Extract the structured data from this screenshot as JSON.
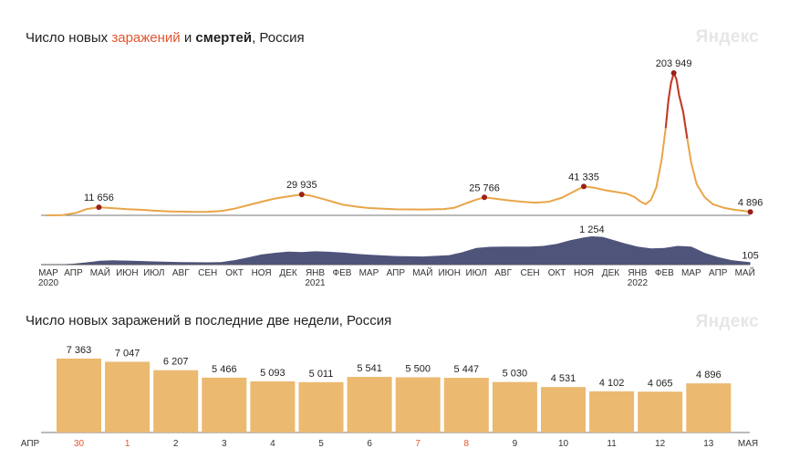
{
  "brand": "Яндекс",
  "chart_data": [
    {
      "type": "line",
      "title_parts": [
        {
          "text": "Число новых ",
          "style": "normal"
        },
        {
          "text": "заражений",
          "style": "red"
        },
        {
          "text": " и ",
          "style": "normal"
        },
        {
          "text": "смертей",
          "style": "bold"
        },
        {
          "text": ", Россия",
          "style": "normal"
        }
      ],
      "x_ticks": [
        {
          "label": "МАР",
          "sub": "2020"
        },
        {
          "label": "АПР",
          "sub": ""
        },
        {
          "label": "МАЙ",
          "sub": ""
        },
        {
          "label": "ИЮН",
          "sub": ""
        },
        {
          "label": "ИЮЛ",
          "sub": ""
        },
        {
          "label": "АВГ",
          "sub": ""
        },
        {
          "label": "СЕН",
          "sub": ""
        },
        {
          "label": "ОКТ",
          "sub": ""
        },
        {
          "label": "НОЯ",
          "sub": ""
        },
        {
          "label": "ДЕК",
          "sub": ""
        },
        {
          "label": "ЯНВ",
          "sub": "2021"
        },
        {
          "label": "ФЕВ",
          "sub": ""
        },
        {
          "label": "МАР",
          "sub": ""
        },
        {
          "label": "АПР",
          "sub": ""
        },
        {
          "label": "МАЙ",
          "sub": ""
        },
        {
          "label": "ИЮН",
          "sub": ""
        },
        {
          "label": "ИЮЛ",
          "sub": ""
        },
        {
          "label": "АВГ",
          "sub": ""
        },
        {
          "label": "СЕН",
          "sub": ""
        },
        {
          "label": "ОКТ",
          "sub": ""
        },
        {
          "label": "НОЯ",
          "sub": ""
        },
        {
          "label": "ДЕК",
          "sub": ""
        },
        {
          "label": "ЯНВ",
          "sub": "2022"
        },
        {
          "label": "ФЕВ",
          "sub": ""
        },
        {
          "label": "МАР",
          "sub": ""
        },
        {
          "label": "АПР",
          "sub": ""
        },
        {
          "label": "МАЙ",
          "sub": ""
        }
      ],
      "series": [
        {
          "metric": "infections",
          "color": "#e8a549",
          "peak_color": "#c0392b",
          "ylim": [
            0,
            210000
          ],
          "points": [
            [
              0.0,
              0
            ],
            [
              0.6,
              400
            ],
            [
              1.1,
              3500
            ],
            [
              1.5,
              9000
            ],
            [
              1.95,
              11656
            ],
            [
              2.5,
              10200
            ],
            [
              3.0,
              8900
            ],
            [
              3.6,
              7900
            ],
            [
              4.0,
              6700
            ],
            [
              4.6,
              5600
            ],
            [
              5.0,
              5300
            ],
            [
              5.5,
              5000
            ],
            [
              6.0,
              5100
            ],
            [
              6.5,
              6200
            ],
            [
              7.0,
              9500
            ],
            [
              7.5,
              14500
            ],
            [
              8.0,
              19500
            ],
            [
              8.5,
              24000
            ],
            [
              9.0,
              27000
            ],
            [
              9.5,
              29935
            ],
            [
              9.8,
              28500
            ],
            [
              10.2,
              24500
            ],
            [
              10.7,
              19000
            ],
            [
              11.0,
              15500
            ],
            [
              11.5,
              12500
            ],
            [
              12.0,
              10500
            ],
            [
              13.0,
              8600
            ],
            [
              14.0,
              8400
            ],
            [
              14.8,
              9000
            ],
            [
              15.2,
              11000
            ],
            [
              15.6,
              17000
            ],
            [
              16.0,
              22500
            ],
            [
              16.3,
              25766
            ],
            [
              16.7,
              23800
            ],
            [
              17.2,
              21500
            ],
            [
              17.7,
              19500
            ],
            [
              18.2,
              18200
            ],
            [
              18.7,
              19500
            ],
            [
              19.2,
              25500
            ],
            [
              19.6,
              33500
            ],
            [
              20.0,
              41335
            ],
            [
              20.4,
              39500
            ],
            [
              20.8,
              36000
            ],
            [
              21.2,
              33500
            ],
            [
              21.6,
              31000
            ],
            [
              21.9,
              26000
            ],
            [
              22.1,
              20000
            ],
            [
              22.3,
              16000
            ],
            [
              22.5,
              22000
            ],
            [
              22.7,
              40000
            ],
            [
              22.9,
              80000
            ],
            [
              23.05,
              125000
            ],
            [
              23.15,
              165000
            ],
            [
              23.25,
              190000
            ],
            [
              23.35,
              203949
            ],
            [
              23.45,
              195000
            ],
            [
              23.55,
              172000
            ],
            [
              23.7,
              148000
            ],
            [
              23.85,
              110000
            ],
            [
              24.0,
              75000
            ],
            [
              24.2,
              45000
            ],
            [
              24.5,
              26000
            ],
            [
              24.8,
              16000
            ],
            [
              25.2,
              11000
            ],
            [
              25.6,
              8000
            ],
            [
              26.0,
              6200
            ],
            [
              26.2,
              4896
            ]
          ],
          "peak_range": [
            22.95,
            23.95
          ],
          "labels": [
            {
              "x": 1.95,
              "value": 11656,
              "text": "11 656"
            },
            {
              "x": 9.5,
              "value": 29935,
              "text": "29 935"
            },
            {
              "x": 16.3,
              "value": 25766,
              "text": "25 766"
            },
            {
              "x": 20.0,
              "value": 41335,
              "text": "41 335"
            },
            {
              "x": 23.35,
              "value": 203949,
              "text": "203 949"
            },
            {
              "x": 26.2,
              "value": 4896,
              "text": "4 896"
            }
          ]
        },
        {
          "metric": "deaths",
          "color": "#4f547a",
          "ylim": [
            0,
            1300
          ],
          "points": [
            [
              0.0,
              0
            ],
            [
              0.5,
              10
            ],
            [
              1.0,
              40
            ],
            [
              1.5,
              100
            ],
            [
              2.0,
              170
            ],
            [
              2.5,
              190
            ],
            [
              3.0,
              180
            ],
            [
              4.0,
              140
            ],
            [
              5.0,
              110
            ],
            [
              6.0,
              100
            ],
            [
              6.5,
              110
            ],
            [
              7.0,
              200
            ],
            [
              7.5,
              320
            ],
            [
              8.0,
              450
            ],
            [
              8.5,
              520
            ],
            [
              9.0,
              580
            ],
            [
              9.5,
              560
            ],
            [
              10.0,
              590
            ],
            [
              10.5,
              570
            ],
            [
              11.0,
              540
            ],
            [
              11.5,
              480
            ],
            [
              12.0,
              440
            ],
            [
              13.0,
              380
            ],
            [
              14.0,
              360
            ],
            [
              15.0,
              420
            ],
            [
              15.5,
              560
            ],
            [
              16.0,
              740
            ],
            [
              16.5,
              790
            ],
            [
              17.0,
              800
            ],
            [
              18.0,
              800
            ],
            [
              18.5,
              830
            ],
            [
              19.0,
              920
            ],
            [
              19.5,
              1080
            ],
            [
              20.0,
              1200
            ],
            [
              20.3,
              1254
            ],
            [
              20.7,
              1230
            ],
            [
              21.0,
              1130
            ],
            [
              21.5,
              950
            ],
            [
              22.0,
              800
            ],
            [
              22.5,
              720
            ],
            [
              23.0,
              740
            ],
            [
              23.5,
              830
            ],
            [
              24.0,
              800
            ],
            [
              24.5,
              520
            ],
            [
              25.0,
              330
            ],
            [
              25.5,
              200
            ],
            [
              26.0,
              130
            ],
            [
              26.2,
              105
            ]
          ],
          "labels": [
            {
              "x": 20.3,
              "value": 1254,
              "text": "1 254"
            },
            {
              "x": 26.2,
              "value": 105,
              "text": "105"
            }
          ]
        }
      ]
    },
    {
      "type": "bar",
      "title": "Число новых заражений в последние две недели, Россия",
      "ylim": [
        0,
        7700
      ],
      "bar_color": "#ebb970",
      "edge_labels": {
        "left": "АПР",
        "right": "МАЯ"
      },
      "categories": [
        "30",
        "1",
        "2",
        "3",
        "4",
        "5",
        "6",
        "7",
        "8",
        "9",
        "10",
        "11",
        "12",
        "13"
      ],
      "holiday": [
        true,
        true,
        false,
        false,
        false,
        false,
        false,
        true,
        true,
        false,
        false,
        false,
        false,
        false
      ],
      "values": [
        7363,
        7047,
        6207,
        5466,
        5093,
        5011,
        5541,
        5500,
        5447,
        5030,
        4531,
        4102,
        4065,
        4896
      ],
      "value_labels": [
        "7 363",
        "7 047",
        "6 207",
        "5 466",
        "5 093",
        "5 011",
        "5 541",
        "5 500",
        "5 447",
        "5 030",
        "4 531",
        "4 102",
        "4 065",
        "4 896"
      ]
    }
  ]
}
